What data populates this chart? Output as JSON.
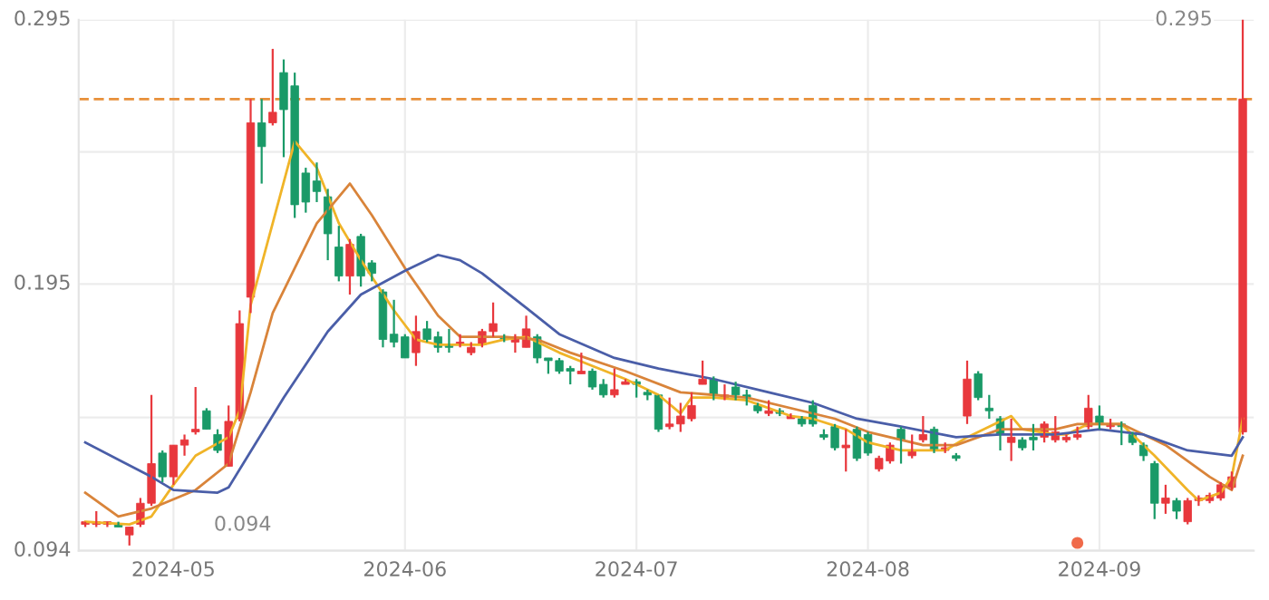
{
  "chart_data": {
    "type": "candlestick",
    "categories": [
      null,
      null,
      null,
      null,
      null,
      null,
      null,
      null,
      "2024-05",
      null,
      null,
      null,
      null,
      null,
      null,
      null,
      null,
      null,
      null,
      null,
      null,
      null,
      null,
      null,
      null,
      null,
      null,
      null,
      null,
      "2024-06",
      null,
      null,
      null,
      null,
      null,
      null,
      null,
      null,
      null,
      null,
      null,
      null,
      null,
      null,
      null,
      null,
      null,
      null,
      null,
      null,
      "2024-07",
      null,
      null,
      null,
      null,
      null,
      null,
      null,
      null,
      null,
      null,
      null,
      null,
      null,
      null,
      null,
      null,
      null,
      null,
      null,
      null,
      "2024-08",
      null,
      null,
      null,
      null,
      null,
      null,
      null,
      null,
      null,
      null,
      null,
      null,
      null,
      null,
      null,
      null,
      null,
      null,
      null,
      null,
      "2024-09",
      null,
      null,
      null,
      null,
      null,
      null,
      null,
      null,
      null,
      null,
      null,
      null,
      null
    ],
    "ohlc": [
      [
        0.104,
        0.105,
        0.103,
        0.105
      ],
      [
        0.104,
        0.109,
        0.103,
        0.105
      ],
      [
        0.104,
        0.105,
        0.103,
        0.105
      ],
      [
        0.104,
        0.105,
        0.103,
        0.103
      ],
      [
        0.1,
        0.103,
        0.096,
        0.103
      ],
      [
        0.104,
        0.114,
        0.103,
        0.112
      ],
      [
        0.112,
        0.153,
        0.111,
        0.127
      ],
      [
        0.131,
        0.132,
        0.12,
        0.122
      ],
      [
        0.122,
        0.134,
        0.119,
        0.134
      ],
      [
        0.134,
        0.138,
        0.13,
        0.136
      ],
      [
        0.139,
        0.156,
        0.138,
        0.14
      ],
      [
        0.147,
        0.148,
        0.14,
        0.14
      ],
      [
        0.138,
        0.14,
        0.131,
        0.132
      ],
      [
        0.126,
        0.149,
        0.126,
        0.143
      ],
      [
        0.144,
        0.185,
        0.143,
        0.18
      ],
      [
        0.19,
        0.265,
        0.184,
        0.256
      ],
      [
        0.256,
        0.265,
        0.233,
        0.247
      ],
      [
        0.256,
        0.284,
        0.255,
        0.26
      ],
      [
        0.275,
        0.28,
        0.243,
        0.261
      ],
      [
        0.27,
        0.275,
        0.22,
        0.225
      ],
      [
        0.237,
        0.239,
        0.222,
        0.226
      ],
      [
        0.234,
        0.241,
        0.226,
        0.23
      ],
      [
        0.228,
        0.231,
        0.204,
        0.214
      ],
      [
        0.209,
        0.217,
        0.196,
        0.198
      ],
      [
        0.198,
        0.212,
        0.191,
        0.21
      ],
      [
        0.213,
        0.214,
        0.194,
        0.198
      ],
      [
        0.203,
        0.204,
        0.196,
        0.199
      ],
      [
        0.192,
        0.193,
        0.171,
        0.174
      ],
      [
        0.176,
        0.189,
        0.171,
        0.173
      ],
      [
        0.175,
        0.176,
        0.167,
        0.167
      ],
      [
        0.169,
        0.183,
        0.164,
        0.177
      ],
      [
        0.178,
        0.181,
        0.173,
        0.174
      ],
      [
        0.175,
        0.177,
        0.169,
        0.171
      ],
      [
        0.172,
        0.178,
        0.169,
        0.171
      ],
      [
        0.172,
        0.176,
        0.171,
        0.173
      ],
      [
        0.169,
        0.173,
        0.168,
        0.171
      ],
      [
        0.172,
        0.178,
        0.171,
        0.177
      ],
      [
        0.177,
        0.188,
        0.175,
        0.18
      ],
      [
        0.175,
        0.176,
        0.173,
        0.174
      ],
      [
        0.173,
        0.176,
        0.169,
        0.175
      ],
      [
        0.171,
        0.183,
        0.171,
        0.178
      ],
      [
        0.175,
        0.176,
        0.165,
        0.167
      ],
      [
        0.167,
        0.167,
        0.161,
        0.166
      ],
      [
        0.166,
        0.167,
        0.161,
        0.162
      ],
      [
        0.163,
        0.164,
        0.157,
        0.162
      ],
      [
        0.161,
        0.169,
        0.161,
        0.162
      ],
      [
        0.162,
        0.163,
        0.155,
        0.156
      ],
      [
        0.157,
        0.159,
        0.152,
        0.153
      ],
      [
        0.153,
        0.163,
        0.152,
        0.155
      ],
      [
        0.157,
        0.159,
        0.157,
        0.158
      ],
      [
        0.158,
        0.159,
        0.152,
        0.157
      ],
      [
        0.154,
        0.155,
        0.151,
        0.153
      ],
      [
        0.153,
        0.153,
        0.139,
        0.14
      ],
      [
        0.141,
        0.152,
        0.14,
        0.142
      ],
      [
        0.142,
        0.15,
        0.139,
        0.145
      ],
      [
        0.144,
        0.154,
        0.143,
        0.149
      ],
      [
        0.157,
        0.166,
        0.157,
        0.159
      ],
      [
        0.159,
        0.16,
        0.151,
        0.153
      ],
      [
        0.152,
        0.157,
        0.151,
        0.153
      ],
      [
        0.156,
        0.158,
        0.151,
        0.153
      ],
      [
        0.153,
        0.155,
        0.149,
        0.152
      ],
      [
        0.149,
        0.15,
        0.146,
        0.147
      ],
      [
        0.146,
        0.151,
        0.145,
        0.147
      ],
      [
        0.147,
        0.148,
        0.145,
        0.146
      ],
      [
        0.144,
        0.146,
        0.144,
        0.145
      ],
      [
        0.144,
        0.145,
        0.141,
        0.142
      ],
      [
        0.149,
        0.151,
        0.141,
        0.142
      ],
      [
        0.138,
        0.14,
        0.136,
        0.137
      ],
      [
        0.141,
        0.142,
        0.132,
        0.133
      ],
      [
        0.133,
        0.14,
        0.124,
        0.134
      ],
      [
        0.14,
        0.141,
        0.128,
        0.129
      ],
      [
        0.138,
        0.139,
        0.13,
        0.131
      ],
      [
        0.125,
        0.13,
        0.124,
        0.129
      ],
      [
        0.128,
        0.135,
        0.127,
        0.134
      ],
      [
        0.14,
        0.141,
        0.127,
        0.136
      ],
      [
        0.13,
        0.138,
        0.129,
        0.132
      ],
      [
        0.136,
        0.145,
        0.135,
        0.138
      ],
      [
        0.14,
        0.141,
        0.131,
        0.132
      ],
      [
        0.132,
        0.135,
        0.131,
        0.133
      ],
      [
        0.13,
        0.131,
        0.128,
        0.129
      ],
      [
        0.145,
        0.166,
        0.142,
        0.159
      ],
      [
        0.161,
        0.162,
        0.151,
        0.152
      ],
      [
        0.148,
        0.153,
        0.144,
        0.147
      ],
      [
        0.144,
        0.145,
        0.132,
        0.138
      ],
      [
        0.135,
        0.144,
        0.128,
        0.137
      ],
      [
        0.136,
        0.137,
        0.132,
        0.133
      ],
      [
        0.137,
        0.142,
        0.132,
        0.136
      ],
      [
        0.137,
        0.143,
        0.135,
        0.142
      ],
      [
        0.136,
        0.145,
        0.135,
        0.139
      ],
      [
        0.136,
        0.138,
        0.135,
        0.137
      ],
      [
        0.137,
        0.141,
        0.136,
        0.138
      ],
      [
        0.141,
        0.153,
        0.14,
        0.148
      ],
      [
        0.145,
        0.149,
        0.14,
        0.142
      ],
      [
        0.141,
        0.144,
        0.14,
        0.142
      ],
      [
        0.142,
        0.143,
        0.134,
        0.141
      ],
      [
        0.138,
        0.139,
        0.134,
        0.135
      ],
      [
        0.134,
        0.135,
        0.128,
        0.13
      ],
      [
        0.127,
        0.128,
        0.106,
        0.112
      ],
      [
        0.112,
        0.119,
        0.108,
        0.114
      ],
      [
        0.113,
        0.114,
        0.106,
        0.109
      ],
      [
        0.105,
        0.114,
        0.104,
        0.113
      ],
      [
        0.113,
        0.115,
        0.111,
        0.114
      ],
      [
        0.113,
        0.116,
        0.112,
        0.115
      ],
      [
        0.114,
        0.12,
        0.113,
        0.119
      ],
      [
        0.118,
        0.124,
        0.117,
        0.122
      ],
      [
        0.139,
        0.295,
        0.138,
        0.265
      ]
    ],
    "colors": [
      "#e8383d",
      "#e8383d",
      "#e8383d",
      "#1a9a68",
      "#e8383d",
      "#e8383d",
      "#e8383d",
      "#1a9a68",
      "#e8383d",
      "#e8383d",
      "#e8383d",
      "#1a9a68",
      "#1a9a68",
      "#e8383d",
      "#e8383d",
      "#e8383d",
      "#1a9a68",
      "#e8383d",
      "#1a9a68",
      "#1a9a68",
      "#1a9a68",
      "#1a9a68",
      "#1a9a68",
      "#1a9a68",
      "#e8383d",
      "#1a9a68",
      "#1a9a68",
      "#1a9a68",
      "#1a9a68",
      "#1a9a68",
      "#e8383d",
      "#1a9a68",
      "#1a9a68",
      "#1a9a68",
      "#e8383d",
      "#e8383d",
      "#e8383d",
      "#e8383d",
      "#1a9a68",
      "#e8383d",
      "#e8383d",
      "#1a9a68",
      "#1a9a68",
      "#1a9a68",
      "#1a9a68",
      "#e8383d",
      "#1a9a68",
      "#1a9a68",
      "#e8383d",
      "#e8383d",
      "#1a9a68",
      "#1a9a68",
      "#1a9a68",
      "#e8383d",
      "#e8383d",
      "#e8383d",
      "#e8383d",
      "#1a9a68",
      "#e8383d",
      "#1a9a68",
      "#1a9a68",
      "#1a9a68",
      "#e8383d",
      "#1a9a68",
      "#e8383d",
      "#1a9a68",
      "#1a9a68",
      "#1a9a68",
      "#1a9a68",
      "#e8383d",
      "#1a9a68",
      "#1a9a68",
      "#e8383d",
      "#e8383d",
      "#1a9a68",
      "#e8383d",
      "#e8383d",
      "#1a9a68",
      "#e8383d",
      "#1a9a68",
      "#e8383d",
      "#1a9a68",
      "#1a9a68",
      "#1a9a68",
      "#e8383d",
      "#1a9a68",
      "#1a9a68",
      "#e8383d",
      "#e8383d",
      "#e8383d",
      "#e8383d",
      "#e8383d",
      "#1a9a68",
      "#e8383d",
      "#1a9a68",
      "#1a9a68",
      "#1a9a68",
      "#1a9a68",
      "#e8383d",
      "#1a9a68",
      "#e8383d",
      "#e8383d",
      "#e8383d",
      "#e8383d",
      "#e8383d",
      "#e8383d"
    ],
    "series": [
      {
        "type": "line",
        "color": "#f0b428",
        "values": [
          0.105,
          null,
          null,
          null,
          0.104,
          null,
          0.107,
          null,
          0.119,
          null,
          0.13,
          null,
          null,
          0.137,
          0.147,
          0.187,
          null,
          0.218,
          null,
          0.249,
          null,
          0.239,
          null,
          0.218,
          null,
          0.204,
          null,
          null,
          0.185,
          null,
          0.174,
          null,
          0.172,
          null,
          null,
          null,
          0.172,
          null,
          0.174,
          null,
          0.175,
          null,
          null,
          0.169,
          null,
          null,
          0.164,
          null,
          null,
          0.159,
          null,
          null,
          0.153,
          null,
          0.146,
          0.152,
          null,
          0.152,
          null,
          null,
          0.151,
          null,
          null,
          null,
          0.145,
          null,
          0.144,
          null,
          null,
          0.14,
          null,
          0.135,
          null,
          null,
          0.132,
          null,
          null,
          null,
          0.132,
          null,
          0.137,
          null,
          null,
          null,
          0.145,
          0.14,
          null,
          null,
          0.138,
          0.138,
          null,
          0.142,
          null,
          null,
          0.142,
          null,
          null,
          0.13,
          null,
          null,
          0.117,
          0.113,
          null,
          0.116,
          0.122,
          0.144
        ]
      },
      {
        "type": "line",
        "color": "#d9843a",
        "values": [
          0.116,
          null,
          null,
          0.107,
          null,
          null,
          0.11,
          null,
          null,
          null,
          0.117,
          null,
          null,
          0.127,
          null,
          0.154,
          null,
          0.184,
          null,
          null,
          null,
          0.218,
          null,
          null,
          0.233,
          null,
          0.221,
          null,
          null,
          0.201,
          null,
          null,
          0.183,
          null,
          0.175,
          null,
          null,
          null,
          0.175,
          null,
          null,
          0.174,
          null,
          null,
          0.169,
          null,
          null,
          null,
          null,
          0.162,
          null,
          null,
          null,
          null,
          0.154,
          null,
          null,
          0.153,
          null,
          null,
          0.152,
          null,
          null,
          null,
          null,
          0.147,
          null,
          null,
          0.144,
          null,
          null,
          0.139,
          null,
          null,
          null,
          null,
          0.134,
          null,
          null,
          0.134,
          null,
          null,
          null,
          0.14,
          null,
          null,
          null,
          null,
          0.14,
          null,
          0.142,
          null,
          null,
          null,
          0.142,
          null,
          null,
          null,
          0.134,
          null,
          null,
          null,
          0.122,
          null,
          0.117,
          0.13
        ]
      },
      {
        "type": "line",
        "color": "#4a5ea8",
        "values": [
          0.135,
          null,
          null,
          null,
          null,
          null,
          0.122,
          null,
          0.117,
          null,
          null,
          null,
          0.116,
          0.118,
          null,
          null,
          null,
          null,
          0.152,
          null,
          null,
          null,
          0.177,
          null,
          null,
          0.191,
          null,
          null,
          null,
          0.2,
          null,
          null,
          0.206,
          null,
          0.204,
          null,
          0.199,
          null,
          null,
          null,
          0.186,
          null,
          null,
          0.176,
          null,
          null,
          null,
          null,
          0.167,
          null,
          null,
          null,
          0.163,
          null,
          null,
          null,
          null,
          0.159,
          null,
          null,
          null,
          null,
          0.154,
          null,
          null,
          null,
          0.15,
          null,
          null,
          null,
          0.144,
          null,
          null,
          null,
          0.141,
          null,
          null,
          null,
          null,
          0.137,
          null,
          null,
          null,
          0.138,
          null,
          null,
          null,
          null,
          0.138,
          null,
          null,
          null,
          0.14,
          null,
          null,
          null,
          0.138,
          null,
          null,
          null,
          0.132,
          null,
          null,
          null,
          0.13,
          0.137
        ]
      },
      {
        "type": "scatter",
        "color": "#f06a4a",
        "values": [
          null,
          null,
          null,
          null,
          null,
          null,
          null,
          null,
          null,
          null,
          null,
          null,
          null,
          null,
          null,
          null,
          null,
          null,
          null,
          null,
          null,
          null,
          null,
          null,
          null,
          null,
          null,
          null,
          null,
          null,
          null,
          null,
          null,
          null,
          null,
          null,
          null,
          null,
          null,
          null,
          null,
          null,
          null,
          null,
          null,
          null,
          null,
          null,
          null,
          null,
          null,
          null,
          null,
          null,
          null,
          null,
          null,
          null,
          null,
          null,
          null,
          null,
          null,
          null,
          null,
          null,
          null,
          null,
          null,
          null,
          null,
          null,
          null,
          null,
          null,
          null,
          null,
          null,
          null,
          null,
          null,
          null,
          null,
          null,
          null,
          null,
          null,
          null,
          null,
          null,
          0.097,
          null,
          null,
          null,
          null,
          null,
          null,
          null,
          null,
          null,
          null,
          null,
          null,
          null,
          null,
          null
        ]
      }
    ],
    "ref_lines": [
      {
        "axis": "y",
        "value": 0.265,
        "color": "#e8903a",
        "line_style": "dashed"
      }
    ],
    "annotations": [
      "0.295",
      "0.094"
    ],
    "ylim": [
      0.094,
      0.295
    ],
    "yticks": [
      0.295,
      {
        "value": 0.245,
        "label": null
      },
      0.195,
      {
        "value": 0.1445,
        "label": null
      },
      0.094
    ],
    "grid": true
  }
}
